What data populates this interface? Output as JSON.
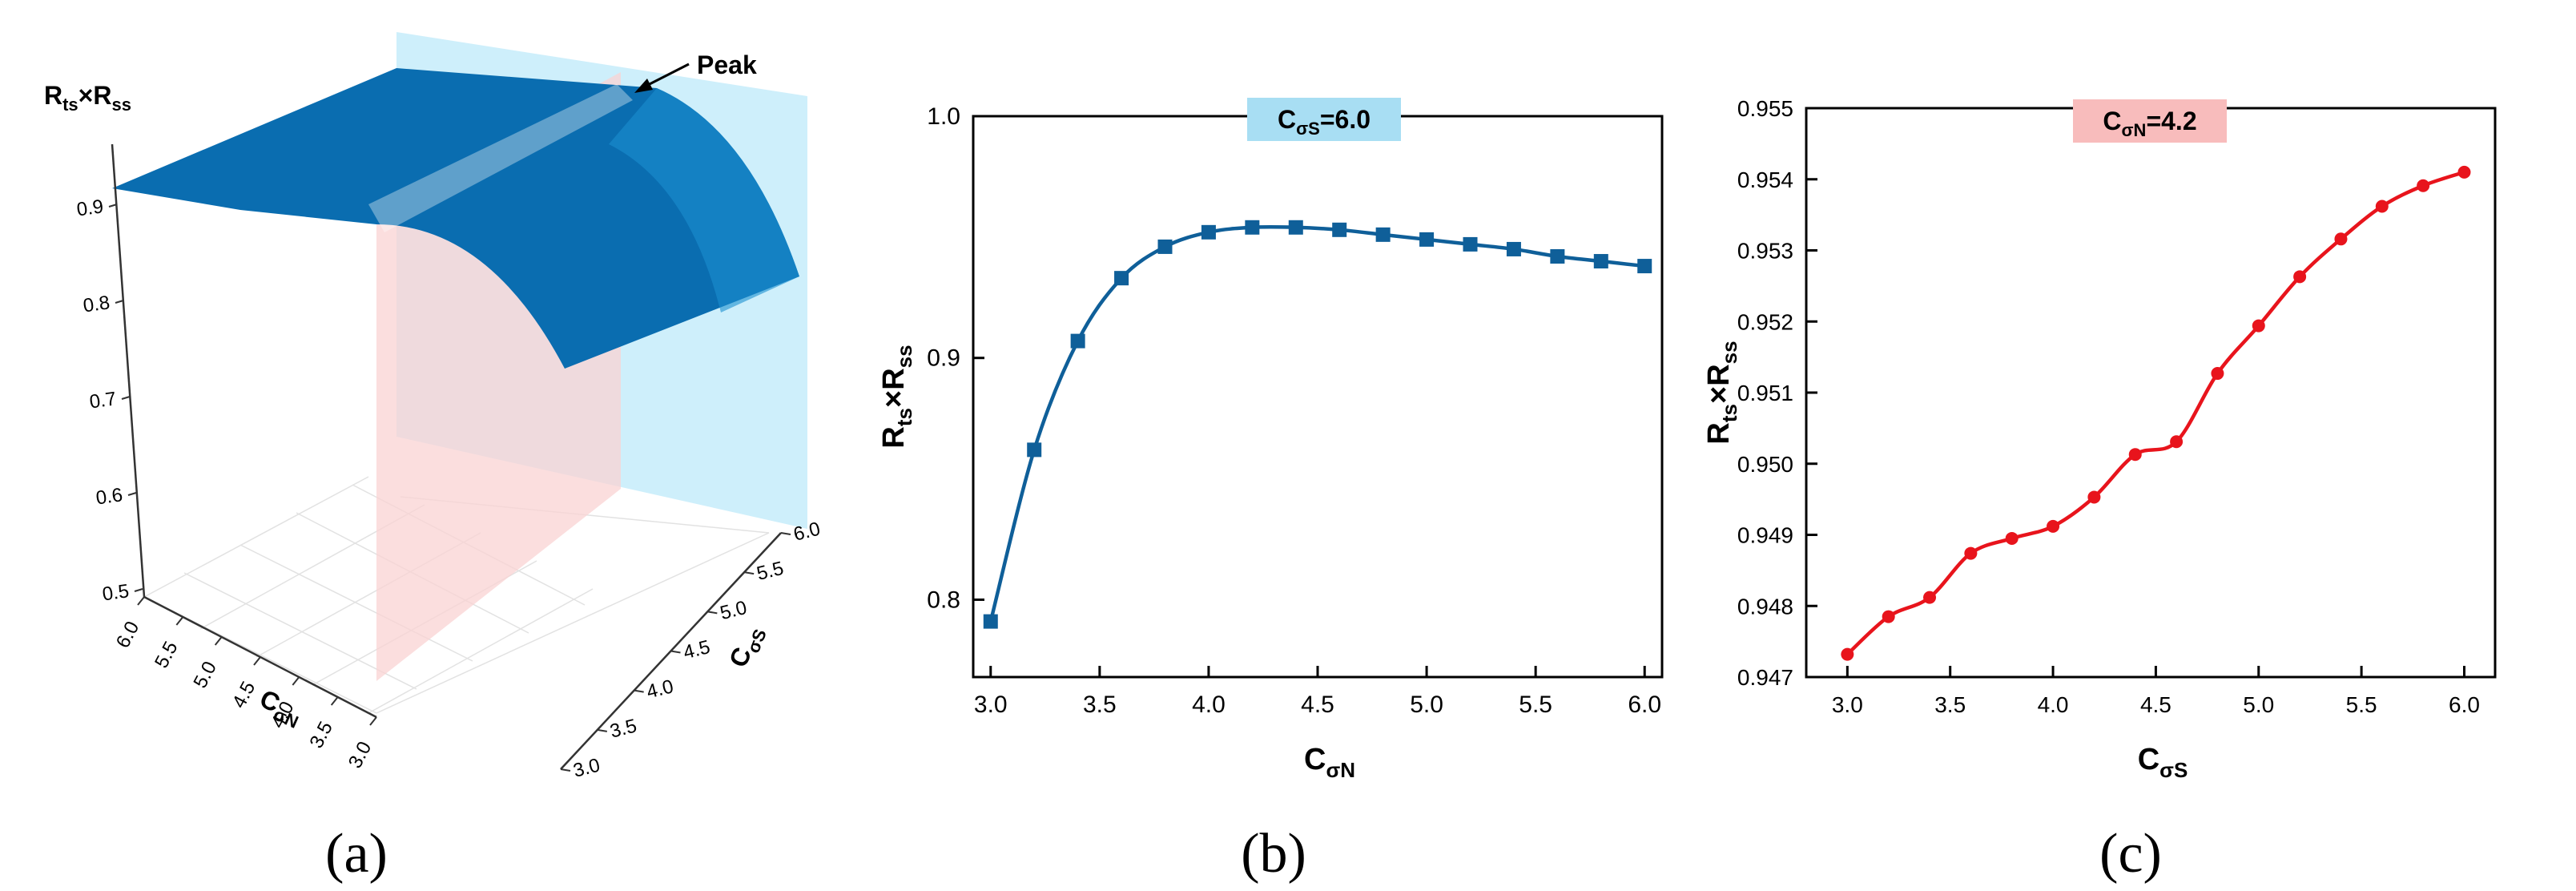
{
  "panels": [
    {
      "label": "(a)"
    },
    {
      "label": "(b)"
    },
    {
      "label": "(c)"
    }
  ],
  "chart_data": [
    {
      "type": "surface",
      "panel": "(a)",
      "zlabel": {
        "main": "R",
        "sub1": "ts",
        "times": "×",
        "main2": "R",
        "sub2": "ss"
      },
      "xlabel": {
        "main": "C",
        "sub": "σN"
      },
      "ylabel": {
        "main": "C",
        "sub": "σS"
      },
      "zticks": [
        "0.5",
        "0.6",
        "0.7",
        "0.8",
        "0.9"
      ],
      "xticks": [
        "6.0",
        "5.5",
        "5.0",
        "4.5",
        "4.0",
        "3.5",
        "3.0"
      ],
      "yticks": [
        "3.0",
        "3.5",
        "4.0",
        "4.5",
        "5.0",
        "5.5",
        "6.0"
      ],
      "annotation": "Peak",
      "plane_colors": {
        "CσS=6.0 plane": "#c6ecfa",
        "CσN=4.2 plane": "#f9d3d3"
      },
      "surface_color": "#0a6db0"
    },
    {
      "type": "line",
      "panel": "(b)",
      "badge": {
        "main": "C",
        "sub": "σS",
        "value": "=6.0",
        "color": "#a8def3"
      },
      "xlabel": {
        "main": "C",
        "sub": "σN"
      },
      "ylabel": {
        "main": "R",
        "sub1": "ts",
        "times": "×",
        "main2": "R",
        "sub2": "ss"
      },
      "xlim": [
        2.92,
        6.08
      ],
      "ylim": [
        0.768,
        1.0
      ],
      "xticks": [
        "3.0",
        "3.5",
        "4.0",
        "4.5",
        "5.0",
        "5.5",
        "6.0"
      ],
      "yticks": [
        "0.8",
        "0.9",
        "1.0"
      ],
      "color": "#0f5f99",
      "marker": "square",
      "x": [
        3.0,
        3.2,
        3.4,
        3.6,
        3.8,
        4.0,
        4.2,
        4.4,
        4.6,
        4.8,
        5.0,
        5.2,
        5.4,
        5.6,
        5.8,
        6.0
      ],
      "y": [
        0.791,
        0.862,
        0.907,
        0.933,
        0.946,
        0.952,
        0.954,
        0.954,
        0.953,
        0.951,
        0.949,
        0.947,
        0.945,
        0.942,
        0.94,
        0.938
      ]
    },
    {
      "type": "line",
      "panel": "(c)",
      "badge": {
        "main": "C",
        "sub": "σN",
        "value": "=4.2",
        "color": "#f8bcbc"
      },
      "xlabel": {
        "main": "C",
        "sub": "σS"
      },
      "ylabel": {
        "main": "R",
        "sub1": "ts",
        "times": "×",
        "main2": "R",
        "sub2": "ss"
      },
      "xlim": [
        2.8,
        6.15
      ],
      "ylim": [
        0.947,
        0.955
      ],
      "xticks": [
        "3.0",
        "3.5",
        "4.0",
        "4.5",
        "5.0",
        "5.5",
        "6.0"
      ],
      "yticks": [
        "0.947",
        "0.948",
        "0.949",
        "0.950",
        "0.951",
        "0.952",
        "0.953",
        "0.954",
        "0.955"
      ],
      "color": "#e8141c",
      "marker": "circle",
      "x": [
        3.0,
        3.2,
        3.4,
        3.6,
        3.8,
        4.0,
        4.2,
        4.4,
        4.6,
        4.8,
        5.0,
        5.2,
        5.4,
        5.6,
        5.8,
        6.0
      ],
      "y": [
        0.94732,
        0.94785,
        0.94812,
        0.94874,
        0.94895,
        0.94912,
        0.94953,
        0.95013,
        0.95031,
        0.95127,
        0.95194,
        0.95263,
        0.95316,
        0.95362,
        0.95391,
        0.9541
      ]
    }
  ]
}
